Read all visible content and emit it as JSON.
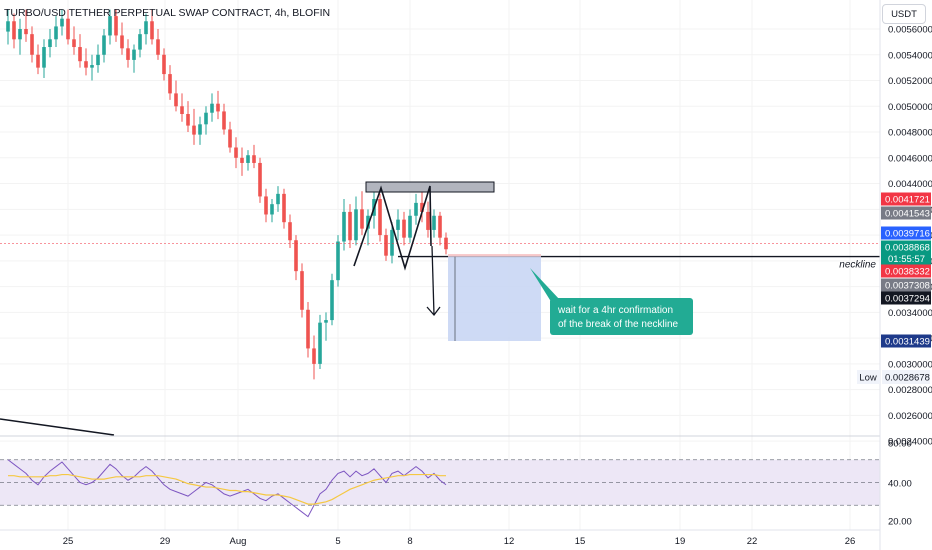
{
  "header": {
    "title": "TURBO/USD TETHER PERPETUAL SWAP CONTRACT, 4h, BLOFIN",
    "currency_button": "USDT"
  },
  "colors": {
    "bull": "#26a69a",
    "bear": "#ef5350",
    "price_tag_red": "#f23645",
    "price_tag_gray": "#787b86",
    "price_tag_blue": "#2962ff",
    "price_tag_navy": "#1e3a8a",
    "price_tag_green": "#089981",
    "rsi_line": "#7e57c2",
    "rsi_ma": "#f5c842",
    "rsi_band": "#ede7f6",
    "annotation_bg": "#22ab94"
  },
  "chart_data": {
    "type": "candlestick",
    "y_axis": {
      "ticks": [
        "0.0056000",
        "0.0054000",
        "0.0052000",
        "0.0050000",
        "0.0048000",
        "0.0046000",
        "0.0044000",
        "0.0042000",
        "0.0040000",
        "0.0038000",
        "0.0036000",
        "0.0034000",
        "0.0032000",
        "0.0030000",
        "0.0028000",
        "0.0026000",
        "0.0024000"
      ],
      "range": [
        0.00237,
        0.00575
      ]
    },
    "x_axis": {
      "ticks": [
        "25",
        "29",
        "Aug",
        "5",
        "8",
        "12",
        "15",
        "19",
        "22",
        "26"
      ]
    },
    "price_tags": [
      {
        "value": "0.0041721",
        "color": "#f23645"
      },
      {
        "value": "0.0041543",
        "color": "#787b86"
      },
      {
        "value": "0.0039716",
        "color": "#2962ff"
      },
      {
        "value": "0.0038868",
        "color": "#089981",
        "sub": "01:55:57"
      },
      {
        "value": "0.0038332",
        "color": "#f23645"
      },
      {
        "value": "0.0037308",
        "color": "#787b86"
      },
      {
        "value": "0.0037294",
        "color": "#131722"
      },
      {
        "value": "0.0031439",
        "color": "#1e3a8a"
      },
      {
        "value": "0.0028678",
        "color": "#ffffff",
        "label": "Low"
      }
    ],
    "candles": [
      [
        0.00558,
        0.00575,
        0.00548,
        0.00566
      ],
      [
        0.00566,
        0.00572,
        0.00545,
        0.00552
      ],
      [
        0.00552,
        0.00568,
        0.0054,
        0.0056
      ],
      [
        0.0056,
        0.00575,
        0.0055,
        0.00556
      ],
      [
        0.00556,
        0.00562,
        0.00534,
        0.0054
      ],
      [
        0.0054,
        0.00548,
        0.00525,
        0.0053
      ],
      [
        0.0053,
        0.00552,
        0.00522,
        0.00546
      ],
      [
        0.00546,
        0.0056,
        0.00538,
        0.00552
      ],
      [
        0.00552,
        0.0057,
        0.00546,
        0.00562
      ],
      [
        0.00562,
        0.00575,
        0.00555,
        0.00568
      ],
      [
        0.00568,
        0.00575,
        0.00548,
        0.00552
      ],
      [
        0.00552,
        0.00562,
        0.0054,
        0.00546
      ],
      [
        0.00546,
        0.00556,
        0.0053,
        0.00535
      ],
      [
        0.00535,
        0.00545,
        0.00524,
        0.0053
      ],
      [
        0.0053,
        0.0054,
        0.0052,
        0.00532
      ],
      [
        0.00532,
        0.00548,
        0.00526,
        0.0054
      ],
      [
        0.0054,
        0.0056,
        0.00534,
        0.00555
      ],
      [
        0.00555,
        0.00575,
        0.00548,
        0.0057
      ],
      [
        0.0057,
        0.00575,
        0.0055,
        0.00555
      ],
      [
        0.00555,
        0.00565,
        0.0054,
        0.00545
      ],
      [
        0.00545,
        0.00552,
        0.0053,
        0.00536
      ],
      [
        0.00536,
        0.00548,
        0.00526,
        0.00544
      ],
      [
        0.00544,
        0.0056,
        0.00538,
        0.00556
      ],
      [
        0.00556,
        0.00572,
        0.00548,
        0.00566
      ],
      [
        0.00566,
        0.00575,
        0.00548,
        0.00552
      ],
      [
        0.00552,
        0.0056,
        0.00536,
        0.0054
      ],
      [
        0.0054,
        0.00545,
        0.0052,
        0.00525
      ],
      [
        0.00525,
        0.00532,
        0.00505,
        0.0051
      ],
      [
        0.0051,
        0.0052,
        0.00496,
        0.005
      ],
      [
        0.005,
        0.0051,
        0.00488,
        0.00494
      ],
      [
        0.00494,
        0.00504,
        0.0048,
        0.00485
      ],
      [
        0.00485,
        0.00498,
        0.0047,
        0.00478
      ],
      [
        0.00478,
        0.00492,
        0.0047,
        0.00486
      ],
      [
        0.00486,
        0.005,
        0.00478,
        0.00495
      ],
      [
        0.00495,
        0.0051,
        0.00488,
        0.00502
      ],
      [
        0.00502,
        0.00512,
        0.0049,
        0.00496
      ],
      [
        0.00496,
        0.00502,
        0.00478,
        0.00482
      ],
      [
        0.00482,
        0.00488,
        0.00464,
        0.00468
      ],
      [
        0.00468,
        0.00476,
        0.00452,
        0.0046
      ],
      [
        0.0046,
        0.00468,
        0.00446,
        0.00456
      ],
      [
        0.00456,
        0.00466,
        0.0045,
        0.00462
      ],
      [
        0.00462,
        0.0047,
        0.00452,
        0.00456
      ],
      [
        0.00456,
        0.0046,
        0.00425,
        0.0043
      ],
      [
        0.0043,
        0.00436,
        0.0041,
        0.00416
      ],
      [
        0.00416,
        0.00428,
        0.0041,
        0.00424
      ],
      [
        0.00424,
        0.00438,
        0.00418,
        0.00432
      ],
      [
        0.00432,
        0.00436,
        0.00405,
        0.0041
      ],
      [
        0.0041,
        0.00416,
        0.0039,
        0.00396
      ],
      [
        0.00396,
        0.004,
        0.00365,
        0.00372
      ],
      [
        0.00372,
        0.00378,
        0.00336,
        0.00342
      ],
      [
        0.00342,
        0.00348,
        0.00305,
        0.00312
      ],
      [
        0.00312,
        0.00322,
        0.00288,
        0.003
      ],
      [
        0.003,
        0.00338,
        0.00296,
        0.00332
      ],
      [
        0.00332,
        0.0034,
        0.00318,
        0.00334
      ],
      [
        0.00334,
        0.0037,
        0.0033,
        0.00365
      ],
      [
        0.00365,
        0.004,
        0.0036,
        0.00395
      ],
      [
        0.00395,
        0.00428,
        0.00388,
        0.00418
      ],
      [
        0.00418,
        0.00424,
        0.0039,
        0.00396
      ],
      [
        0.00396,
        0.0043,
        0.00392,
        0.0042
      ],
      [
        0.0042,
        0.00434,
        0.004,
        0.00405
      ],
      [
        0.00405,
        0.0042,
        0.00392,
        0.00415
      ],
      [
        0.00415,
        0.00436,
        0.00405,
        0.00428
      ],
      [
        0.00428,
        0.00432,
        0.00395,
        0.004
      ],
      [
        0.004,
        0.00405,
        0.0038,
        0.00384
      ],
      [
        0.00384,
        0.0041,
        0.00378,
        0.00404
      ],
      [
        0.00404,
        0.0042,
        0.00396,
        0.00412
      ],
      [
        0.00412,
        0.00418,
        0.00392,
        0.00398
      ],
      [
        0.00398,
        0.0042,
        0.00394,
        0.00415
      ],
      [
        0.00415,
        0.00432,
        0.00408,
        0.00425
      ],
      [
        0.00425,
        0.00436,
        0.0041,
        0.00418
      ],
      [
        0.00418,
        0.00426,
        0.00398,
        0.00404
      ],
      [
        0.00404,
        0.0042,
        0.00398,
        0.00415
      ],
      [
        0.00415,
        0.00418,
        0.00392,
        0.00398
      ],
      [
        0.00398,
        0.00402,
        0.00385,
        0.00389
      ]
    ],
    "rsi": {
      "levels": [
        "80.00",
        "40.00",
        "20.00"
      ],
      "values": [
        70,
        66,
        62,
        58,
        52,
        48,
        55,
        60,
        64,
        68,
        62,
        56,
        50,
        48,
        50,
        54,
        60,
        66,
        62,
        56,
        52,
        55,
        60,
        64,
        60,
        54,
        48,
        44,
        42,
        40,
        38,
        42,
        46,
        50,
        48,
        44,
        40,
        38,
        40,
        42,
        44,
        40,
        36,
        34,
        38,
        40,
        36,
        32,
        28,
        24,
        20,
        30,
        40,
        44,
        52,
        58,
        60,
        55,
        60,
        56,
        58,
        62,
        56,
        50,
        58,
        60,
        56,
        60,
        64,
        60,
        54,
        58,
        52,
        48
      ],
      "ma": [
        56,
        56,
        55,
        55,
        55,
        55,
        55,
        56,
        56,
        57,
        57,
        56,
        55,
        54,
        53,
        53,
        53,
        54,
        55,
        55,
        55,
        55,
        55,
        56,
        56,
        56,
        55,
        54,
        53,
        51,
        49,
        48,
        47,
        46,
        46,
        45,
        44,
        43,
        43,
        42,
        42,
        41,
        40,
        39,
        39,
        39,
        38,
        37,
        35,
        33,
        31,
        31,
        32,
        33,
        35,
        38,
        41,
        44,
        46,
        48,
        50,
        52,
        53,
        54,
        55,
        56,
        56,
        57,
        57,
        57,
        57,
        57,
        56,
        56
      ],
      "ylim": [
        10,
        90
      ]
    }
  },
  "annotations": {
    "neckline_label": "neckline",
    "note_line1": "wait for a 4hr confirmation",
    "note_line2": "of the break of the neckline"
  }
}
